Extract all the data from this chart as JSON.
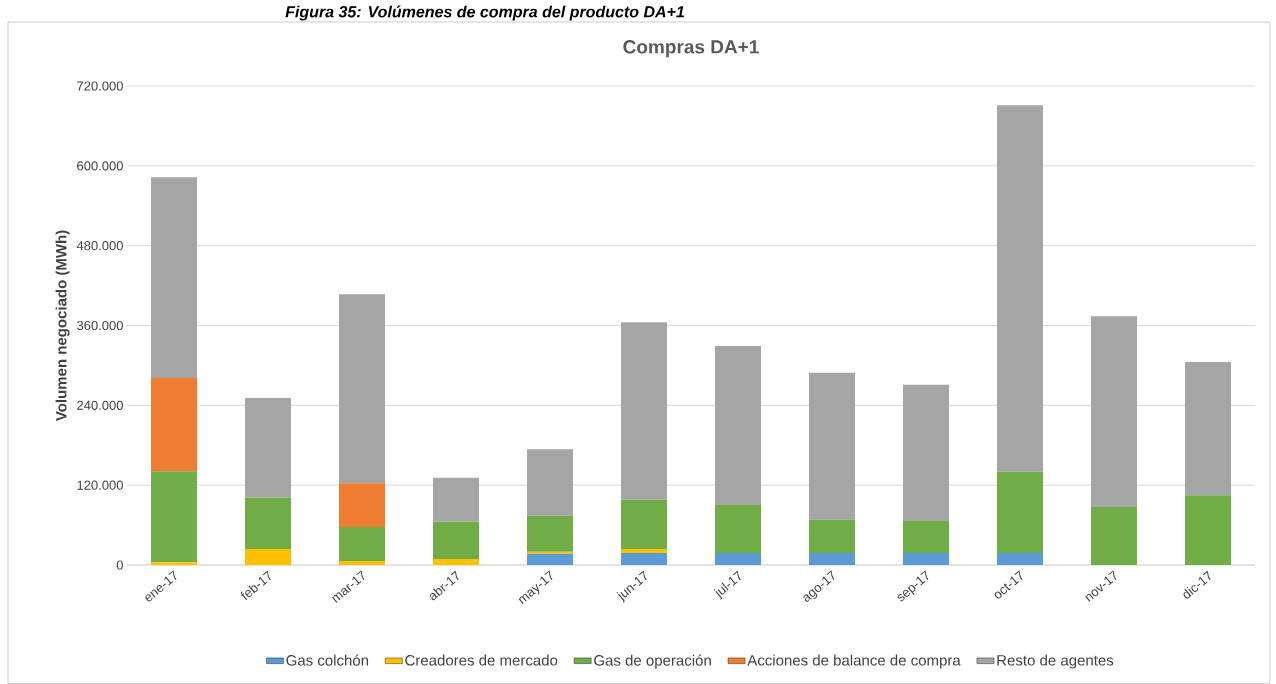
{
  "chart_data": {
    "type": "bar",
    "stacked": true,
    "title": "Compras DA+1",
    "ylabel": "Volumen negociado (MWh)",
    "annotations": [
      "Figura 35: Volúmenes de compra del producto DA+1"
    ],
    "categories": [
      "ene-17",
      "feb-17",
      "mar-17",
      "abr-17",
      "may-17",
      "jun-17",
      "jul-17",
      "ago-17",
      "sep-17",
      "oct-17",
      "nov-17",
      "dic-17"
    ],
    "series": [
      {
        "name": "Gas colchón",
        "color": "#5b9bd5",
        "values": [
          0,
          0,
          0,
          0,
          17000,
          18000,
          18000,
          18000,
          18000,
          18000,
          0,
          0
        ]
      },
      {
        "name": "Creadores de mercado",
        "color": "#ffc000",
        "values": [
          4000,
          24000,
          6000,
          9000,
          3000,
          6000,
          0,
          0,
          0,
          0,
          0,
          0
        ]
      },
      {
        "name": "Gas de operación",
        "color": "#70ad47",
        "values": [
          137000,
          77000,
          51000,
          56000,
          54000,
          74000,
          72000,
          50000,
          48000,
          122000,
          87000,
          105000
        ]
      },
      {
        "name": "Acciones de balance de compra",
        "color": "#ed7d31",
        "values": [
          140000,
          0,
          66000,
          0,
          0,
          0,
          0,
          0,
          0,
          0,
          0,
          0
        ]
      },
      {
        "name": "Resto de agentes",
        "color": "#a5a5a5",
        "values": [
          302000,
          150000,
          284000,
          66000,
          100000,
          267000,
          239000,
          221000,
          205000,
          551000,
          287000,
          200000
        ]
      }
    ],
    "ylim": [
      0,
      720000
    ],
    "yticks": [
      {
        "value": 0,
        "label": "0"
      },
      {
        "value": 120000,
        "label": "120.000"
      },
      {
        "value": 240000,
        "label": "240.000"
      },
      {
        "value": 360000,
        "label": "360.000"
      },
      {
        "value": 480000,
        "label": "480.000"
      },
      {
        "value": 600000,
        "label": "600.000"
      },
      {
        "value": 720000,
        "label": "720.000"
      }
    ],
    "grid": "y",
    "legend": "bottom"
  }
}
